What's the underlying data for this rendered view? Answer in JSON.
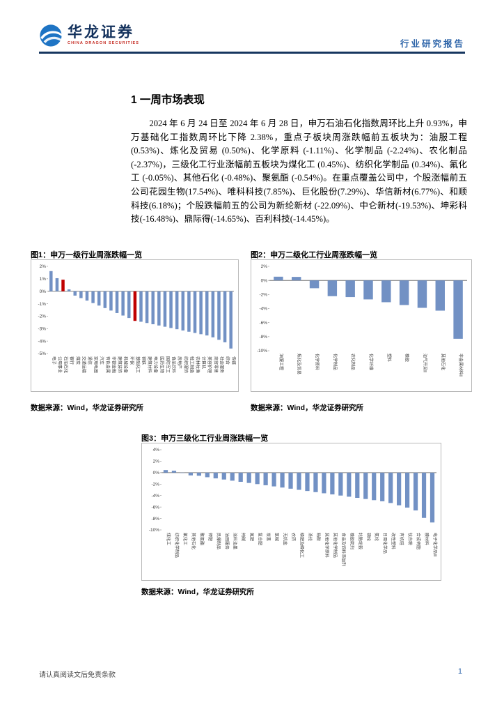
{
  "header": {
    "brand_cn": "华龙证券",
    "brand_en": "CHINA DRAGON SECURITIES",
    "doc_type": "行业研究报告"
  },
  "section": {
    "heading": "1 一周市场表现"
  },
  "paragraph": "2024 年 6 月 24 日至 2024 年 6 月 28 日，申万石油石化指数周环比上升 0.93%，申万基础化工指数周环比下降 2.38%，重点子板块周涨跌幅前五板块为：油服工程 (0.53%)、炼化及贸易 (0.50%)、化学原料 (-1.11%)、化学制品 (-2.24%)、农化制品 (-2.37%)，三级化工行业涨幅前五板块为煤化工 (0.45%)、纺织化学制品 (0.34%)、氟化工 (-0.05%)、其他石化 (-0.48%)、聚氨酯 (-0.54%)。在重点覆盖公司中，个股涨幅前五公司花园生物(17.54%)、唯科科技(7.85%)、巨化股份(7.29%)、华信新材(6.77%)、和顺科技(6.18%)；个股跌幅前五的公司为新纶新材 (-22.09%)、中仑新材(-19.53%)、坤彩科技(-16.48%)、鼎际得(-14.65%)、百利科技(-14.45%)。",
  "figures": [
    {
      "title": "图1：申万一级行业周涨跌幅一览",
      "source": "数据来源：Wind，华龙证券研究所"
    },
    {
      "title": "图2：申万二级化工行业周涨跌幅一览",
      "source": "数据来源：Wind，华龙证券研究所"
    },
    {
      "title": "图3：申万三级化工行业周涨跌幅一览",
      "source": "数据来源：Wind，华龙证券研究所"
    }
  ],
  "chart_data": [
    {
      "type": "bar",
      "title": "申万一级行业周涨跌幅一览",
      "xlabel": "",
      "ylabel": "",
      "ylim": [
        -5,
        2
      ],
      "yticks": [
        2,
        1,
        0,
        -1,
        -2,
        -3,
        -4,
        -5
      ],
      "grid": false,
      "legend": "none",
      "categories": [
        "电子",
        "公用事业",
        "石油石化",
        "银行",
        "煤炭",
        "交通运输",
        "通信",
        "家用电器",
        "汽车",
        "有色金属",
        "非银金融",
        "建筑装饰",
        "机械设备",
        "环保",
        "基础化工",
        "钢铁",
        "建筑材料",
        "电力设备",
        "医药生物",
        "国防军工",
        "食品饮料",
        "房地产",
        "纺织服饰",
        "轻工制造",
        "农林牧渔",
        "计算机",
        "美容护理",
        "商贸零售",
        "社会服务",
        "综合",
        "传媒"
      ],
      "values": [
        1.62,
        1.05,
        0.93,
        0.15,
        -0.35,
        -0.55,
        -0.75,
        -0.95,
        -1.15,
        -1.35,
        -1.55,
        -1.75,
        -1.95,
        -2.15,
        -2.38,
        -2.45,
        -2.55,
        -2.65,
        -2.75,
        -2.85,
        -2.95,
        -3.05,
        -3.15,
        -3.25,
        -3.35,
        -3.45,
        -3.55,
        -3.7,
        -3.9,
        -4.1,
        -4.6
      ],
      "highlight_indices": [
        2,
        14
      ],
      "highlight_note": "石油石化与基础化工以红色标注"
    },
    {
      "type": "bar",
      "title": "申万二级化工行业周涨跌幅一览",
      "xlabel": "",
      "ylabel": "",
      "ylim": [
        -10,
        2
      ],
      "yticks": [
        2,
        0,
        -2,
        -4,
        -6,
        -8,
        -10
      ],
      "grid": false,
      "legend": "none",
      "categories": [
        "油服工程",
        "炼化及贸易",
        "化学原料",
        "化学制品",
        "农化制品",
        "化学纤维",
        "塑料",
        "橡胶",
        "油气开采Ⅱ",
        "其他石化",
        "非金属材料Ⅱ"
      ],
      "values": [
        0.53,
        0.5,
        -1.11,
        -2.24,
        -2.37,
        -2.7,
        -3.1,
        -3.5,
        -3.9,
        -4.3,
        -8.3
      ],
      "highlight_indices": []
    },
    {
      "type": "bar",
      "title": "申万三级化工行业周涨跌幅一览",
      "xlabel": "",
      "ylabel": "",
      "ylim": [
        -10,
        4
      ],
      "yticks": [
        4,
        2,
        0,
        -2,
        -4,
        -6,
        -8,
        -10
      ],
      "grid": false,
      "legend": "none",
      "categories": [
        "煤化工",
        "纺织化学制品",
        "氟化工",
        "其他石化",
        "聚氨酯",
        "钾肥",
        "民爆制品",
        "油田服务",
        "涂料油墨",
        "纯碱",
        "氮肥",
        "复合肥",
        "炭黑",
        "氯碱",
        "无机盐",
        "农药",
        "磷肥及磷化工",
        "涤纶",
        "粘胶",
        "其他化学原料",
        "其他化学制品",
        "食品及饲料添加剂",
        "橡胶助剂",
        "轮胎轮毂",
        "锦纶",
        "氨纶",
        "日用化学品",
        "改性塑料",
        "有机硅",
        "钛白粉",
        "合成树脂",
        "膜材料",
        "电子化学品Ⅲ"
      ],
      "values": [
        0.45,
        0.34,
        -0.05,
        -0.48,
        -0.54,
        -0.8,
        -1.0,
        -1.2,
        -1.4,
        -1.6,
        -1.8,
        -2.0,
        -2.2,
        -2.4,
        -2.6,
        -2.8,
        -3.0,
        -3.2,
        -3.4,
        -3.6,
        -3.8,
        -4.0,
        -4.2,
        -4.4,
        -4.6,
        -4.8,
        -5.0,
        -5.3,
        -5.7,
        -6.1,
        -6.6,
        -7.9,
        -8.7
      ],
      "highlight_indices": []
    }
  ],
  "colors": {
    "bar": "#7291c4",
    "bar_highlight": "#c00000",
    "accent_navy": "#16365f",
    "blue_text": "#2a62a8",
    "brand_red": "#c42a21"
  },
  "footer": {
    "disclaimer": "请认真阅读文后免责条款",
    "page": "1"
  }
}
